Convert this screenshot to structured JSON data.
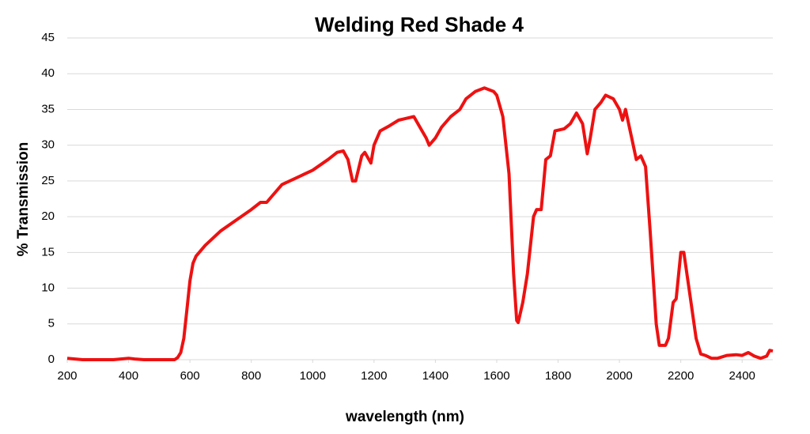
{
  "chart_data": {
    "type": "line",
    "title": "Welding Red Shade 4",
    "x_label": "wavelength (nm)",
    "y_label": "% Transmission",
    "xlim": [
      200,
      2500
    ],
    "xticks": [
      200,
      400,
      600,
      800,
      1000,
      1200,
      1400,
      1600,
      1800,
      2000,
      2200,
      2400
    ],
    "ylim": [
      0,
      45
    ],
    "yticks": [
      0,
      5,
      10,
      15,
      20,
      25,
      30,
      35,
      40,
      45
    ],
    "grid": true,
    "x": [
      200,
      250,
      300,
      350,
      400,
      420,
      450,
      500,
      550,
      560,
      570,
      580,
      590,
      600,
      610,
      620,
      650,
      700,
      750,
      800,
      830,
      850,
      870,
      900,
      950,
      1000,
      1050,
      1080,
      1100,
      1115,
      1130,
      1140,
      1160,
      1170,
      1190,
      1200,
      1220,
      1250,
      1280,
      1300,
      1330,
      1350,
      1370,
      1380,
      1400,
      1420,
      1450,
      1480,
      1500,
      1530,
      1560,
      1590,
      1600,
      1620,
      1640,
      1655,
      1665,
      1670,
      1685,
      1700,
      1720,
      1730,
      1745,
      1760,
      1775,
      1790,
      1820,
      1840,
      1860,
      1880,
      1895,
      1905,
      1920,
      1940,
      1955,
      1980,
      2000,
      2010,
      2020,
      2040,
      2055,
      2070,
      2085,
      2100,
      2120,
      2130,
      2150,
      2160,
      2175,
      2185,
      2200,
      2210,
      2230,
      2250,
      2265,
      2280,
      2300,
      2320,
      2350,
      2380,
      2400,
      2420,
      2440,
      2460,
      2480,
      2490,
      2500
    ],
    "series": [
      {
        "name": "Welding Red Shade 4",
        "color": "#ee1111",
        "values": [
          0.2,
          0,
          0,
          0,
          0.2,
          0.1,
          0,
          0,
          0,
          0.3,
          1,
          3,
          7,
          11,
          13.5,
          14.5,
          16,
          18,
          19.5,
          21,
          22,
          22,
          23,
          24.5,
          25.5,
          26.5,
          28,
          29,
          29.2,
          28,
          25,
          25,
          28.5,
          29,
          27.5,
          30,
          32,
          32.7,
          33.5,
          33.7,
          34,
          32.5,
          31,
          30,
          31,
          32.5,
          34,
          35,
          36.5,
          37.5,
          38,
          37.5,
          37,
          34,
          26,
          12,
          5.5,
          5.2,
          8,
          12,
          20,
          21,
          21,
          28,
          28.5,
          32,
          32.3,
          33,
          34.5,
          33,
          28.8,
          31,
          35,
          36,
          37,
          36.5,
          35,
          33.5,
          35,
          31,
          28,
          28.5,
          27,
          18,
          5,
          2,
          2,
          3,
          8,
          8.5,
          15,
          15,
          9,
          3,
          0.8,
          0.6,
          0.2,
          0.2,
          0.6,
          0.7,
          0.6,
          1,
          0.5,
          0.2,
          0.5,
          1.3,
          1.2
        ]
      }
    ]
  }
}
